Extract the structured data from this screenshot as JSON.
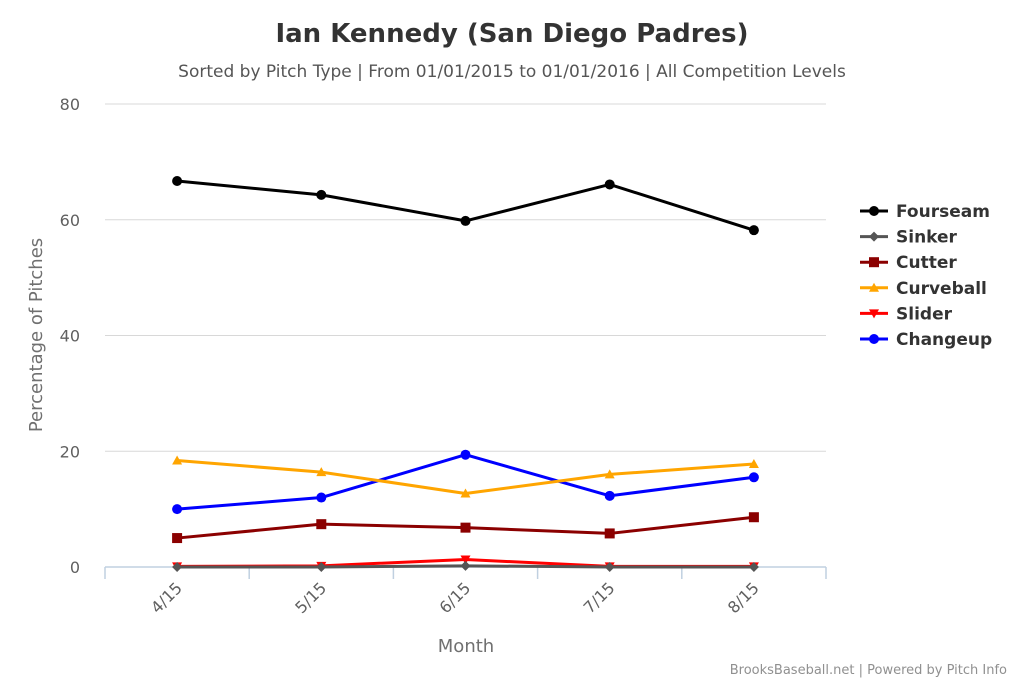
{
  "chart_data": {
    "type": "line",
    "title": "Ian Kennedy (San Diego Padres)",
    "subtitle": "Sorted by Pitch Type | From 01/01/2015 to 01/01/2016 | All Competition Levels",
    "xlabel": "Month",
    "ylabel": "Percentage of Pitches",
    "categories": [
      "4/15",
      "5/15",
      "6/15",
      "7/15",
      "8/15"
    ],
    "ylim": [
      0,
      80
    ],
    "yticks": [
      0,
      20,
      40,
      60,
      80
    ],
    "grid": true,
    "legend_position": "right",
    "series": [
      {
        "name": "Fourseam",
        "color": "#000000",
        "marker": "circle",
        "values": [
          66.7,
          64.3,
          59.8,
          66.1,
          58.2
        ]
      },
      {
        "name": "Sinker",
        "color": "#555555",
        "marker": "diamond",
        "values": [
          0.0,
          0.0,
          0.2,
          0.0,
          0.0
        ]
      },
      {
        "name": "Cutter",
        "color": "#8b0000",
        "marker": "square",
        "values": [
          5.0,
          7.4,
          6.8,
          5.8,
          8.6
        ]
      },
      {
        "name": "Curveball",
        "color": "#ffa500",
        "marker": "triangle",
        "values": [
          18.4,
          16.4,
          12.7,
          16.0,
          17.8
        ]
      },
      {
        "name": "Slider",
        "color": "#ff0000",
        "marker": "triangle-down",
        "values": [
          0.1,
          0.2,
          1.3,
          0.1,
          0.1
        ]
      },
      {
        "name": "Changeup",
        "color": "#0000ff",
        "marker": "circle",
        "values": [
          10.0,
          12.0,
          19.4,
          12.3,
          15.5
        ]
      }
    ],
    "credits": "BrooksBaseball.net | Powered by Pitch Info"
  }
}
